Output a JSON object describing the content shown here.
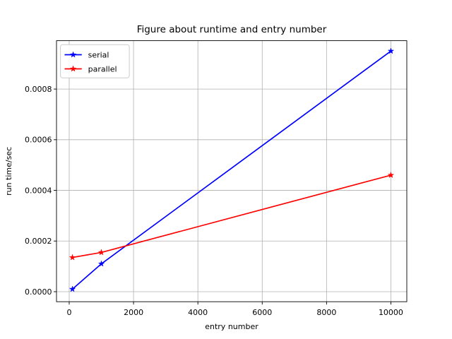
{
  "figure": {
    "title": "Figure about runtime and entry number"
  },
  "chart_data": {
    "type": "line",
    "title": "Figure about runtime and entry number",
    "xlabel": "entry number",
    "ylabel": "run time/sec",
    "x": [
      100,
      1000,
      10000
    ],
    "series": [
      {
        "name": "serial",
        "color": "#0000ff",
        "marker": "star",
        "values": [
          1e-05,
          0.00011,
          0.00095
        ]
      },
      {
        "name": "parallel",
        "color": "#ff0000",
        "marker": "star",
        "values": [
          0.000135,
          0.000155,
          0.00046
        ]
      }
    ],
    "xlim": [
      -395,
      10495
    ],
    "ylim": [
      -3.96e-05,
      0.000991
    ],
    "xticks": [
      0,
      2000,
      4000,
      6000,
      8000,
      10000
    ],
    "xtick_labels": [
      "0",
      "2000",
      "4000",
      "6000",
      "8000",
      "10000"
    ],
    "yticks": [
      0,
      0.0002,
      0.0004,
      0.0006,
      0.0008
    ],
    "ytick_labels": [
      "0.0000",
      "0.0002",
      "0.0004",
      "0.0006",
      "0.0008"
    ],
    "grid": true,
    "grid_color": "#b0b0b0",
    "spine_color": "#000000",
    "background_color": "#ffffff",
    "legend_position": "upper left",
    "legend": [
      "serial",
      "parallel"
    ]
  }
}
